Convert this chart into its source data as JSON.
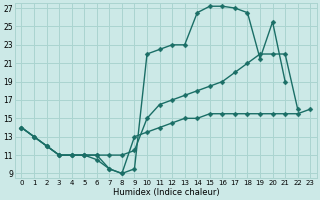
{
  "xlabel": "Humidex (Indice chaleur)",
  "xlim": [
    -0.5,
    23.5
  ],
  "ylim": [
    8.5,
    27.5
  ],
  "xticks": [
    0,
    1,
    2,
    3,
    4,
    5,
    6,
    7,
    8,
    9,
    10,
    11,
    12,
    13,
    14,
    15,
    16,
    17,
    18,
    19,
    20,
    21,
    22,
    23
  ],
  "yticks": [
    9,
    11,
    13,
    15,
    17,
    19,
    21,
    23,
    25,
    27
  ],
  "bg_color": "#cce9e7",
  "grid_color": "#aad4d0",
  "line_color": "#1a6e66",
  "series": [
    {
      "x": [
        0,
        1,
        2,
        3,
        4,
        5,
        6,
        7,
        8,
        9,
        10,
        11,
        12,
        13,
        14,
        15,
        16,
        17,
        18,
        19,
        20,
        21,
        22
      ],
      "y": [
        14,
        13,
        12,
        11,
        11,
        11,
        11,
        9.5,
        9,
        9.5,
        22,
        22.5,
        23,
        23,
        26.5,
        27.2,
        27.2,
        27,
        26.5,
        21.5,
        25.5,
        19,
        null
      ],
      "marker": "D",
      "markersize": 2.5,
      "linewidth": 1.0
    },
    {
      "x": [
        0,
        1,
        2,
        3,
        4,
        5,
        6,
        7,
        8,
        9,
        10,
        11,
        12,
        13,
        14,
        15,
        16,
        17,
        18,
        19,
        20,
        21,
        22
      ],
      "y": [
        14,
        13,
        12,
        11,
        11,
        11,
        11,
        11,
        11,
        11.5,
        15,
        16.5,
        17,
        17.5,
        18,
        18.5,
        19,
        20,
        21,
        22,
        22,
        22,
        16
      ],
      "marker": "D",
      "markersize": 2.5,
      "linewidth": 1.0
    },
    {
      "x": [
        0,
        1,
        2,
        3,
        4,
        5,
        6,
        7,
        8,
        9,
        10,
        11,
        12,
        13,
        14,
        15,
        16,
        17,
        18,
        19,
        20,
        21,
        22,
        23
      ],
      "y": [
        14,
        13,
        12,
        11,
        11,
        11,
        10.5,
        9.5,
        9,
        13,
        13.5,
        14,
        14.5,
        15,
        15,
        15.5,
        15.5,
        15.5,
        15.5,
        15.5,
        15.5,
        15.5,
        15.5,
        16
      ],
      "marker": "D",
      "markersize": 2.5,
      "linewidth": 1.0
    }
  ]
}
